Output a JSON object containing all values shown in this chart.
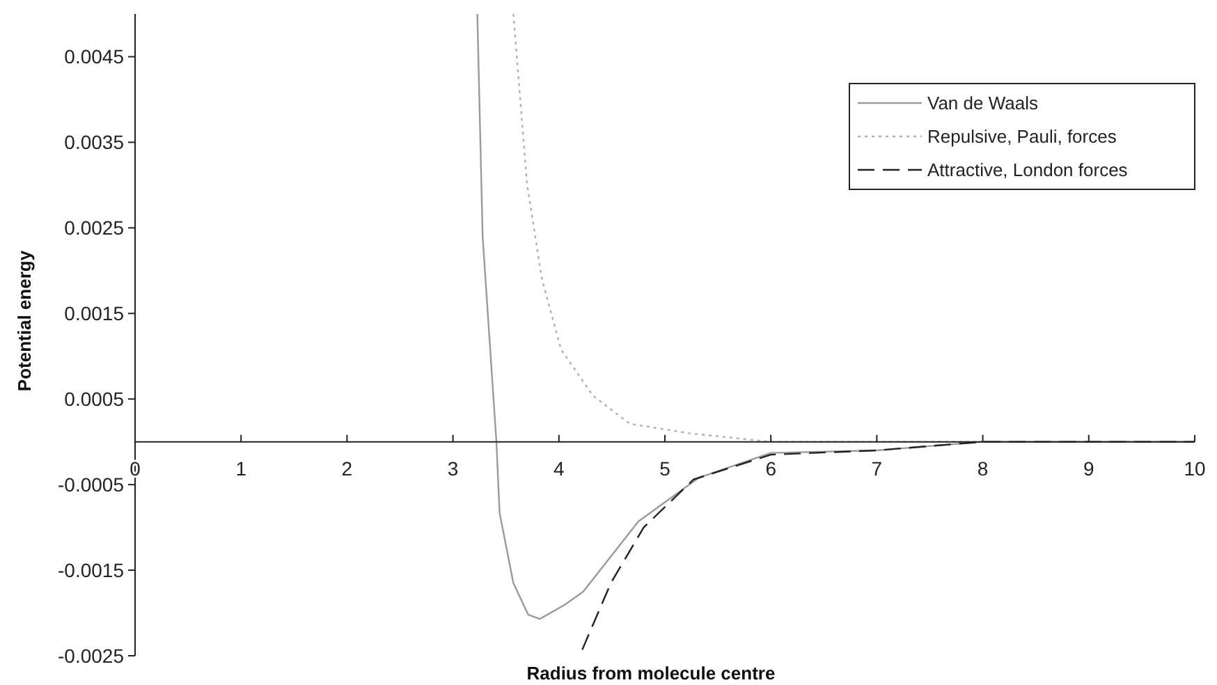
{
  "chart_data": {
    "type": "line",
    "xlabel": "Radius from molecule centre",
    "ylabel": "Potential energy",
    "xlim": [
      0,
      10
    ],
    "xticks": [
      0,
      1,
      2,
      3,
      4,
      5,
      6,
      7,
      8,
      9,
      10
    ],
    "ylim": [
      -0.0025,
      0.005
    ],
    "yticks": [
      -0.0025,
      -0.0015,
      -0.0005,
      0.0005,
      0.0015,
      0.0025,
      0.0035,
      0.0045
    ],
    "grid": false,
    "legend": "top right",
    "marker": "none",
    "series": [
      {
        "name": "Van de Waals",
        "color": "#9a9a9a",
        "line_style": "solid",
        "x": [
          3.23,
          3.28,
          3.41,
          3.44,
          3.57,
          3.71,
          3.82,
          4.06,
          4.23,
          4.75,
          5.32,
          6.0,
          7,
          8,
          9,
          10
        ],
        "values": [
          0.005,
          0.0024,
          0,
          -0.00083,
          -0.00165,
          -0.00202,
          -0.00207,
          -0.0019,
          -0.00175,
          -0.00093,
          -0.00042,
          -0.00013,
          -0.0001,
          0,
          0,
          0
        ]
      },
      {
        "name": "Repulsive, Pauli, forces",
        "color": "#b0b0b0",
        "line_style": "dotted",
        "x": [
          3.57,
          3.7,
          3.84,
          4.02,
          4.32,
          4.67,
          5.23,
          6,
          7,
          8,
          9,
          10
        ],
        "values": [
          0.005,
          0.003,
          0.0019,
          0.00108,
          0.00054,
          0.00021,
          0.0001,
          0,
          0,
          0,
          0,
          0
        ]
      },
      {
        "name": "Attractive, London forces",
        "color": "#222222",
        "line_style": "dashed",
        "x": [
          4.22,
          4.49,
          4.8,
          5.27,
          6.0,
          7,
          8,
          9,
          10
        ],
        "values": [
          -0.00243,
          -0.00165,
          -0.001,
          -0.00044,
          -0.00015,
          -0.0001,
          0,
          0,
          0
        ]
      }
    ]
  }
}
